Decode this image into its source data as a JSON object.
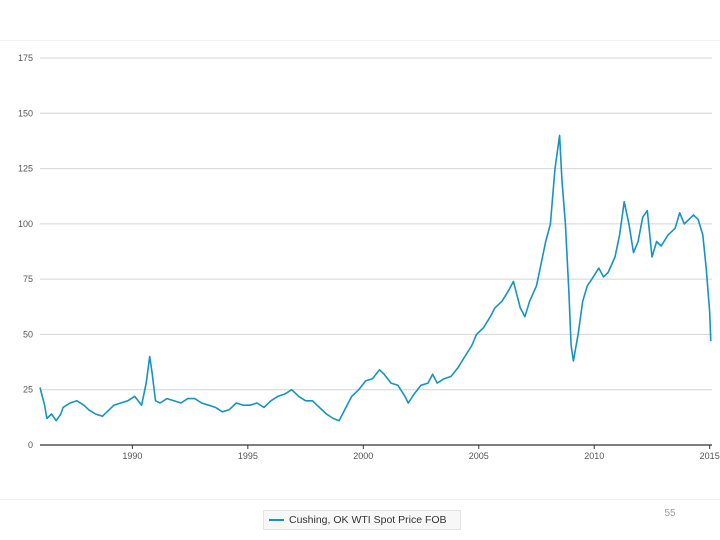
{
  "page": {
    "number": "55"
  },
  "chart_data": {
    "type": "line",
    "title": "",
    "xlabel": "",
    "ylabel": "",
    "ylim": [
      0,
      175
    ],
    "y_ticks": [
      0,
      25,
      50,
      75,
      100,
      125,
      150,
      175
    ],
    "y_tick_labels": [
      "0",
      "25",
      "50",
      "75",
      "100",
      "125",
      "150",
      "175"
    ],
    "x_ticks": [
      1990,
      1995,
      2000,
      2005,
      2010,
      2015
    ],
    "x_tick_labels": [
      "1990",
      "1995",
      "2000",
      "2005",
      "2010",
      "2015"
    ],
    "xlim": [
      1986.0,
      2015.1
    ],
    "grid": "horizontal",
    "legend": {
      "placement": "bottom-center",
      "entries": [
        "Cushing, OK WTI Spot Price FOB"
      ]
    },
    "colors": {
      "series": "#1793c0",
      "grid": "#d4d4d4",
      "axis": "#333333"
    },
    "series": [
      {
        "name": "Cushing, OK WTI Spot Price FOB",
        "x": [
          1986.0,
          1986.2,
          1986.3,
          1986.5,
          1986.7,
          1986.9,
          1987.0,
          1987.3,
          1987.6,
          1987.9,
          1988.1,
          1988.4,
          1988.7,
          1988.9,
          1989.2,
          1989.5,
          1989.8,
          1990.1,
          1990.4,
          1990.6,
          1990.75,
          1990.85,
          1991.0,
          1991.2,
          1991.5,
          1991.8,
          1992.1,
          1992.4,
          1992.7,
          1993.0,
          1993.3,
          1993.6,
          1993.9,
          1994.2,
          1994.5,
          1994.8,
          1995.1,
          1995.4,
          1995.7,
          1996.0,
          1996.3,
          1996.6,
          1996.9,
          1997.2,
          1997.5,
          1997.8,
          1998.1,
          1998.4,
          1998.7,
          1998.95,
          1999.2,
          1999.5,
          1999.8,
          2000.1,
          2000.4,
          2000.7,
          2000.9,
          2001.2,
          2001.5,
          2001.8,
          2001.95,
          2002.2,
          2002.5,
          2002.8,
          2003.0,
          2003.2,
          2003.5,
          2003.8,
          2004.1,
          2004.4,
          2004.7,
          2004.9,
          2005.2,
          2005.5,
          2005.7,
          2006.0,
          2006.3,
          2006.5,
          2006.8,
          2007.0,
          2007.2,
          2007.5,
          2007.7,
          2007.9,
          2008.1,
          2008.3,
          2008.5,
          2008.6,
          2008.75,
          2008.9,
          2009.0,
          2009.1,
          2009.3,
          2009.5,
          2009.7,
          2009.9,
          2010.2,
          2010.4,
          2010.6,
          2010.9,
          2011.1,
          2011.3,
          2011.5,
          2011.7,
          2011.9,
          2012.1,
          2012.3,
          2012.5,
          2012.7,
          2012.9,
          2013.2,
          2013.5,
          2013.7,
          2013.9,
          2014.1,
          2014.3,
          2014.5,
          2014.7,
          2014.85,
          2015.0,
          2015.05
        ],
        "values": [
          26,
          18,
          12,
          14,
          11,
          14,
          17,
          19,
          20,
          18,
          16,
          14,
          13,
          15,
          18,
          19,
          20,
          22,
          18,
          28,
          40,
          33,
          20,
          19,
          21,
          20,
          19,
          21,
          21,
          19,
          18,
          17,
          15,
          16,
          19,
          18,
          18,
          19,
          17,
          20,
          22,
          23,
          25,
          22,
          20,
          20,
          17,
          14,
          12,
          11,
          16,
          22,
          25,
          29,
          30,
          34,
          32,
          28,
          27,
          22,
          19,
          23,
          27,
          28,
          32,
          28,
          30,
          31,
          35,
          40,
          45,
          50,
          53,
          58,
          62,
          65,
          70,
          74,
          62,
          58,
          65,
          72,
          82,
          92,
          100,
          125,
          140,
          120,
          100,
          70,
          45,
          38,
          50,
          65,
          72,
          75,
          80,
          76,
          78,
          85,
          95,
          110,
          100,
          87,
          92,
          103,
          106,
          85,
          92,
          90,
          95,
          98,
          105,
          100,
          102,
          104,
          102,
          95,
          80,
          60,
          47
        ]
      }
    ]
  }
}
